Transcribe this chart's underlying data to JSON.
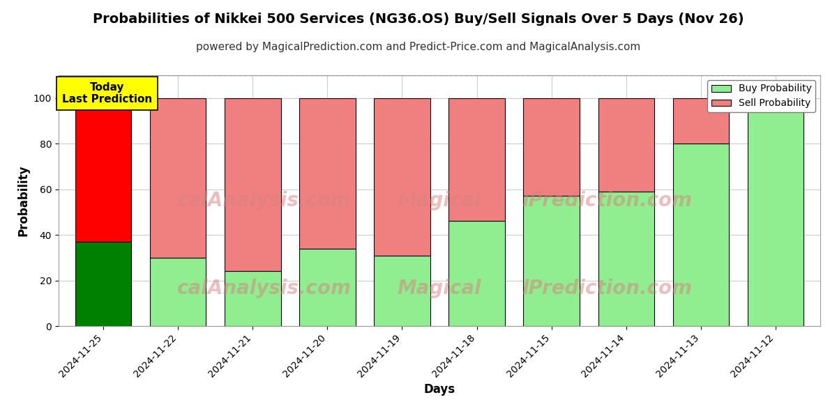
{
  "title": "Probabilities of Nikkei 500 Services (NG36.OS) Buy/Sell Signals Over 5 Days (Nov 26)",
  "subtitle": "powered by MagicalPrediction.com and Predict-Price.com and MagicalAnalysis.com",
  "xlabel": "Days",
  "ylabel": "Probability",
  "dates": [
    "2024-11-25",
    "2024-11-22",
    "2024-11-21",
    "2024-11-20",
    "2024-11-19",
    "2024-11-18",
    "2024-11-15",
    "2024-11-14",
    "2024-11-13",
    "2024-11-12"
  ],
  "buy_values": [
    37,
    30,
    24,
    34,
    31,
    46,
    57,
    59,
    80,
    100
  ],
  "sell_values": [
    63,
    70,
    76,
    66,
    69,
    54,
    43,
    41,
    20,
    0
  ],
  "today_bar_index": 0,
  "today_buy_color": "#008000",
  "today_sell_color": "#ff0000",
  "other_buy_color": "#90ee90",
  "other_sell_color": "#f08080",
  "bar_edge_color": "#000000",
  "ylim": [
    0,
    110
  ],
  "yticks": [
    0,
    20,
    40,
    60,
    80,
    100
  ],
  "dashed_line_y": 110,
  "background_color": "#ffffff",
  "grid_color": "#cccccc",
  "title_fontsize": 14,
  "subtitle_fontsize": 11,
  "label_fontsize": 12,
  "tick_fontsize": 10,
  "today_annotation": "Today\nLast Prediction",
  "today_annotation_bg": "#ffff00",
  "legend_buy_label": "Buy Probability",
  "legend_sell_label": "Sell Probability",
  "bar_width": 0.75
}
